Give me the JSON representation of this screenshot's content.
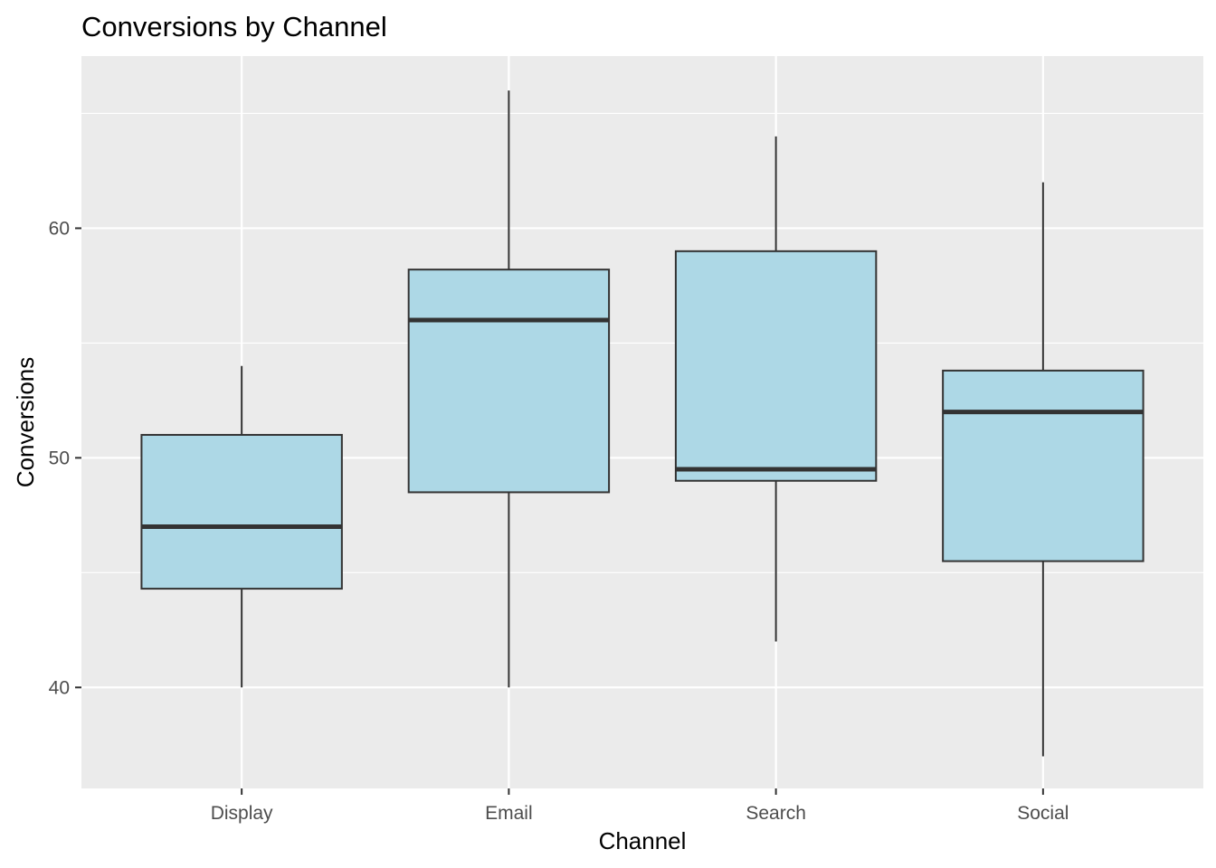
{
  "chart_data": {
    "type": "boxplot",
    "title": "Conversions by Channel",
    "xlabel": "Channel",
    "ylabel": "Conversions",
    "ylim": [
      35.6,
      67.5
    ],
    "yticks": [
      40,
      50,
      60
    ],
    "grid": true,
    "legend": "none",
    "colors": {
      "panel": "#ebebeb",
      "grid": "#ffffff",
      "box_fill": "#add8e6",
      "box_stroke": "#333333"
    },
    "categories": [
      "Display",
      "Email",
      "Search",
      "Social"
    ],
    "boxes": [
      {
        "category": "Display",
        "min": 40,
        "q1": 44.3,
        "median": 47,
        "q3": 51,
        "max": 54
      },
      {
        "category": "Email",
        "min": 40,
        "q1": 48.5,
        "median": 56,
        "q3": 58.2,
        "max": 66
      },
      {
        "category": "Search",
        "min": 42,
        "q1": 49,
        "median": 49.5,
        "q3": 59,
        "max": 64
      },
      {
        "category": "Social",
        "min": 37,
        "q1": 45.5,
        "median": 52,
        "q3": 53.8,
        "max": 62
      }
    ]
  }
}
